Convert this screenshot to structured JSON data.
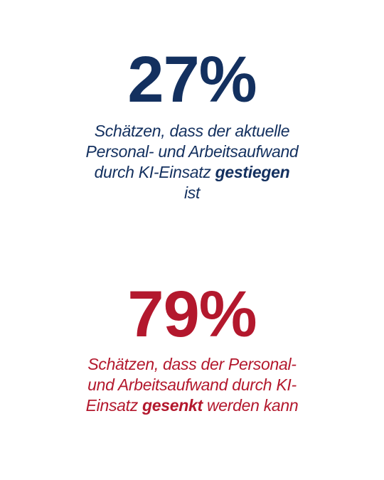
{
  "colors": {
    "navy": "#13305f",
    "red": "#b3182d",
    "background": "#ffffff"
  },
  "stat_top": {
    "value": "27%",
    "text_before": "Schätzen, dass der aktuelle Personal- und Arbeitsaufwand durch KI-Einsatz ",
    "emphasis": "gestiegen",
    "text_after": " ist"
  },
  "stat_bottom": {
    "value": "79%",
    "text_before": "Schätzen, dass der Personal- und Arbeitsaufwand durch KI-Einsatz ",
    "emphasis": "gesenkt",
    "text_after": " werden kann"
  }
}
